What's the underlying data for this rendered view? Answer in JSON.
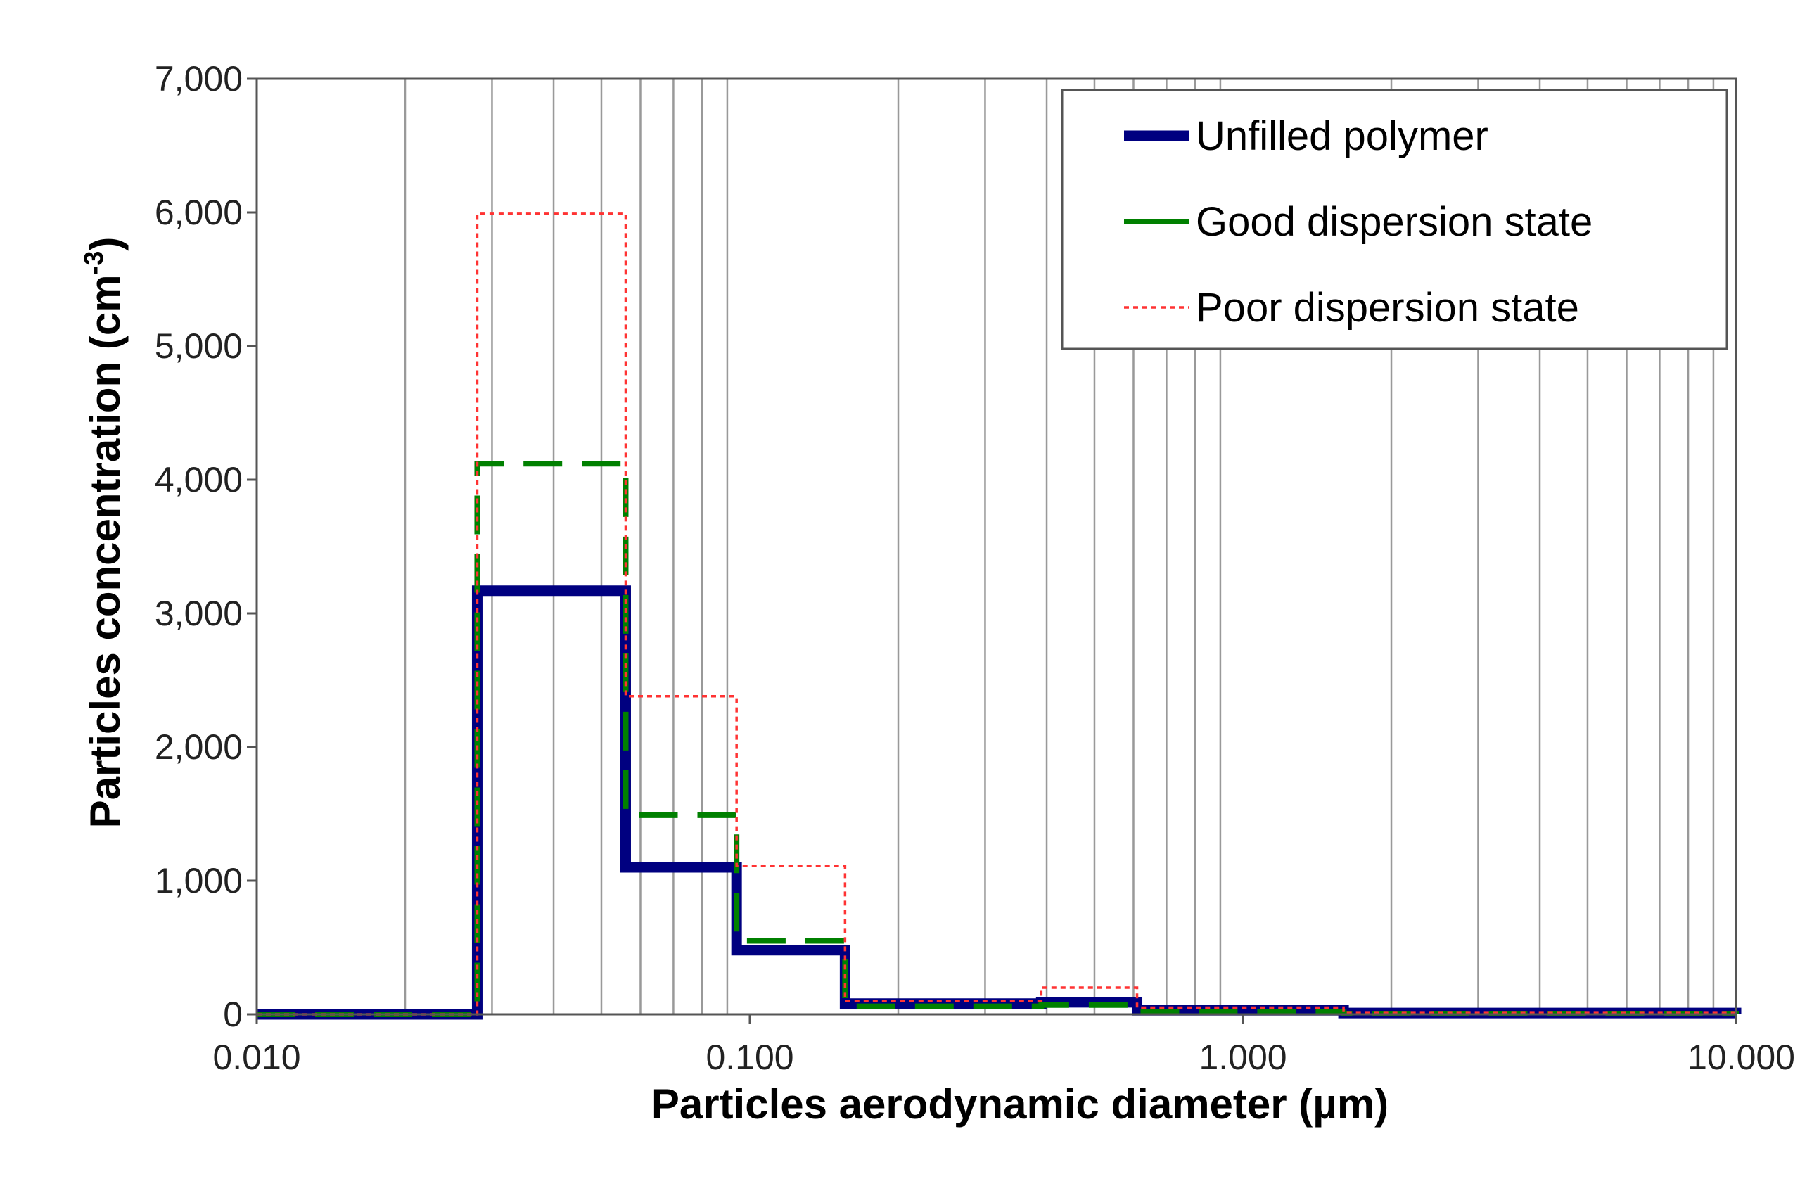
{
  "chart_data": {
    "type": "line",
    "step": true,
    "title": "",
    "xlabel": "Particles aerodynamic diameter (µm)",
    "ylabel_main": "Particles concentration (cm",
    "ylabel_sup": "-3",
    "ylabel_end": ")",
    "xscale": "log",
    "xlim": [
      0.01,
      10
    ],
    "ylim": [
      0,
      7000
    ],
    "grid": "vertical",
    "legend_position": "top-right",
    "x_ticks": [
      {
        "value": 0.01,
        "label": "0.010"
      },
      {
        "value": 0.1,
        "label": "0.100"
      },
      {
        "value": 1,
        "label": "1.000"
      },
      {
        "value": 10,
        "label": "10.000"
      }
    ],
    "y_ticks": [
      {
        "value": 0,
        "label": "0"
      },
      {
        "value": 1000,
        "label": "1,000"
      },
      {
        "value": 2000,
        "label": "2,000"
      },
      {
        "value": 3000,
        "label": "3,000"
      },
      {
        "value": 4000,
        "label": "4,000"
      },
      {
        "value": 5000,
        "label": "5,000"
      },
      {
        "value": 6000,
        "label": "6,000"
      },
      {
        "value": 7000,
        "label": "7,000"
      }
    ],
    "bin_edges": [
      0.01,
      0.028,
      0.056,
      0.094,
      0.156,
      0.39,
      0.61,
      1.6,
      10
    ],
    "series": [
      {
        "name": "Unfilled polymer",
        "color": "#000080",
        "style": "solid-thick",
        "values": [
          0,
          3170,
          1100,
          480,
          80,
          90,
          30,
          10
        ]
      },
      {
        "name": "Good dispersion state",
        "color": "#008000",
        "style": "dashed",
        "values": [
          0,
          4120,
          1490,
          550,
          60,
          70,
          20,
          5
        ]
      },
      {
        "name": "Poor dispersion state",
        "color": "#ff3333",
        "style": "dotted",
        "values": [
          0,
          5990,
          2380,
          1110,
          100,
          200,
          50,
          15
        ]
      }
    ]
  }
}
